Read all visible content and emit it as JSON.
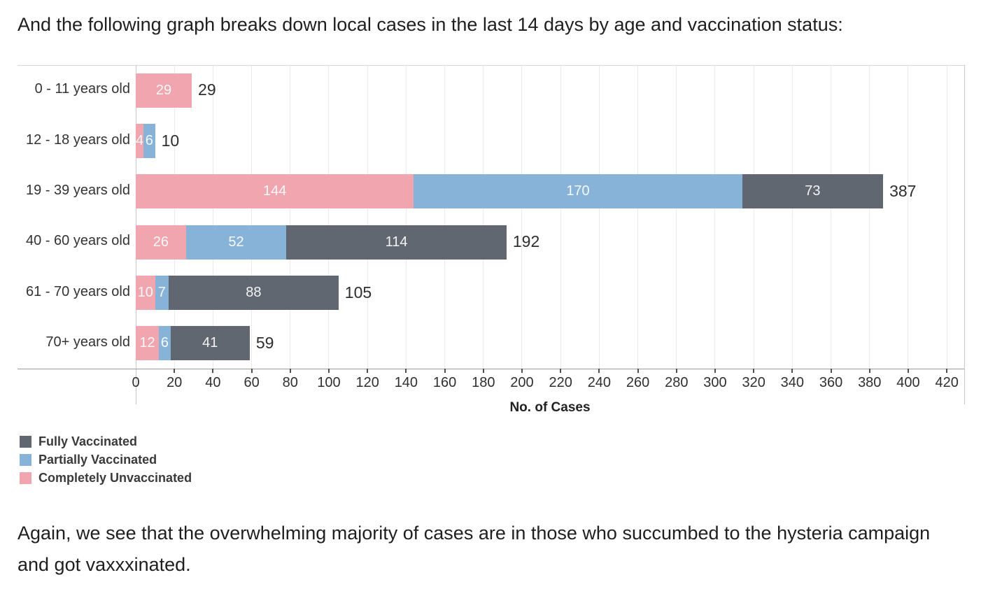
{
  "intro_text": "And the following graph breaks down local cases in the last 14 days by age and vaccination status:",
  "outro_text": "Again, we see that the overwhelming majority of cases are in those who succumbed to the hysteria campaign and got vaxxxinated.",
  "chart_data": {
    "type": "bar",
    "orientation": "horizontal",
    "stacked": true,
    "title": "",
    "xlabel": "No. of Cases",
    "ylabel": "",
    "categories": [
      "0 - 11 years old",
      "12 - 18 years old",
      "19 - 39 years old",
      "40 - 60 years old",
      "61 - 70 years old",
      "70+ years old"
    ],
    "series": [
      {
        "name": "Completely Unvaccinated",
        "color": "#F1A5AE",
        "values": [
          29,
          4,
          144,
          26,
          10,
          12
        ]
      },
      {
        "name": "Partially Vaccinated",
        "color": "#87B3D9",
        "values": [
          0,
          6,
          170,
          52,
          7,
          6
        ]
      },
      {
        "name": "Fully Vaccinated",
        "color": "#606771",
        "values": [
          0,
          0,
          73,
          114,
          88,
          41
        ]
      }
    ],
    "totals": [
      29,
      10,
      387,
      192,
      105,
      59
    ],
    "xlim": [
      0,
      429
    ],
    "x_ticks": [
      0,
      20,
      40,
      60,
      80,
      100,
      120,
      140,
      160,
      180,
      200,
      220,
      240,
      260,
      280,
      300,
      320,
      340,
      360,
      380,
      400,
      420
    ],
    "grid": "vertical",
    "legend_position": "bottom-left",
    "legend": [
      {
        "label": "Fully Vaccinated",
        "color": "#606771"
      },
      {
        "label": "Partially Vaccinated",
        "color": "#87B3D9"
      },
      {
        "label": "Completely Unvaccinated",
        "color": "#F1A5AE"
      }
    ],
    "bar_label_color": "rgba(255,255,255,0.92)"
  }
}
